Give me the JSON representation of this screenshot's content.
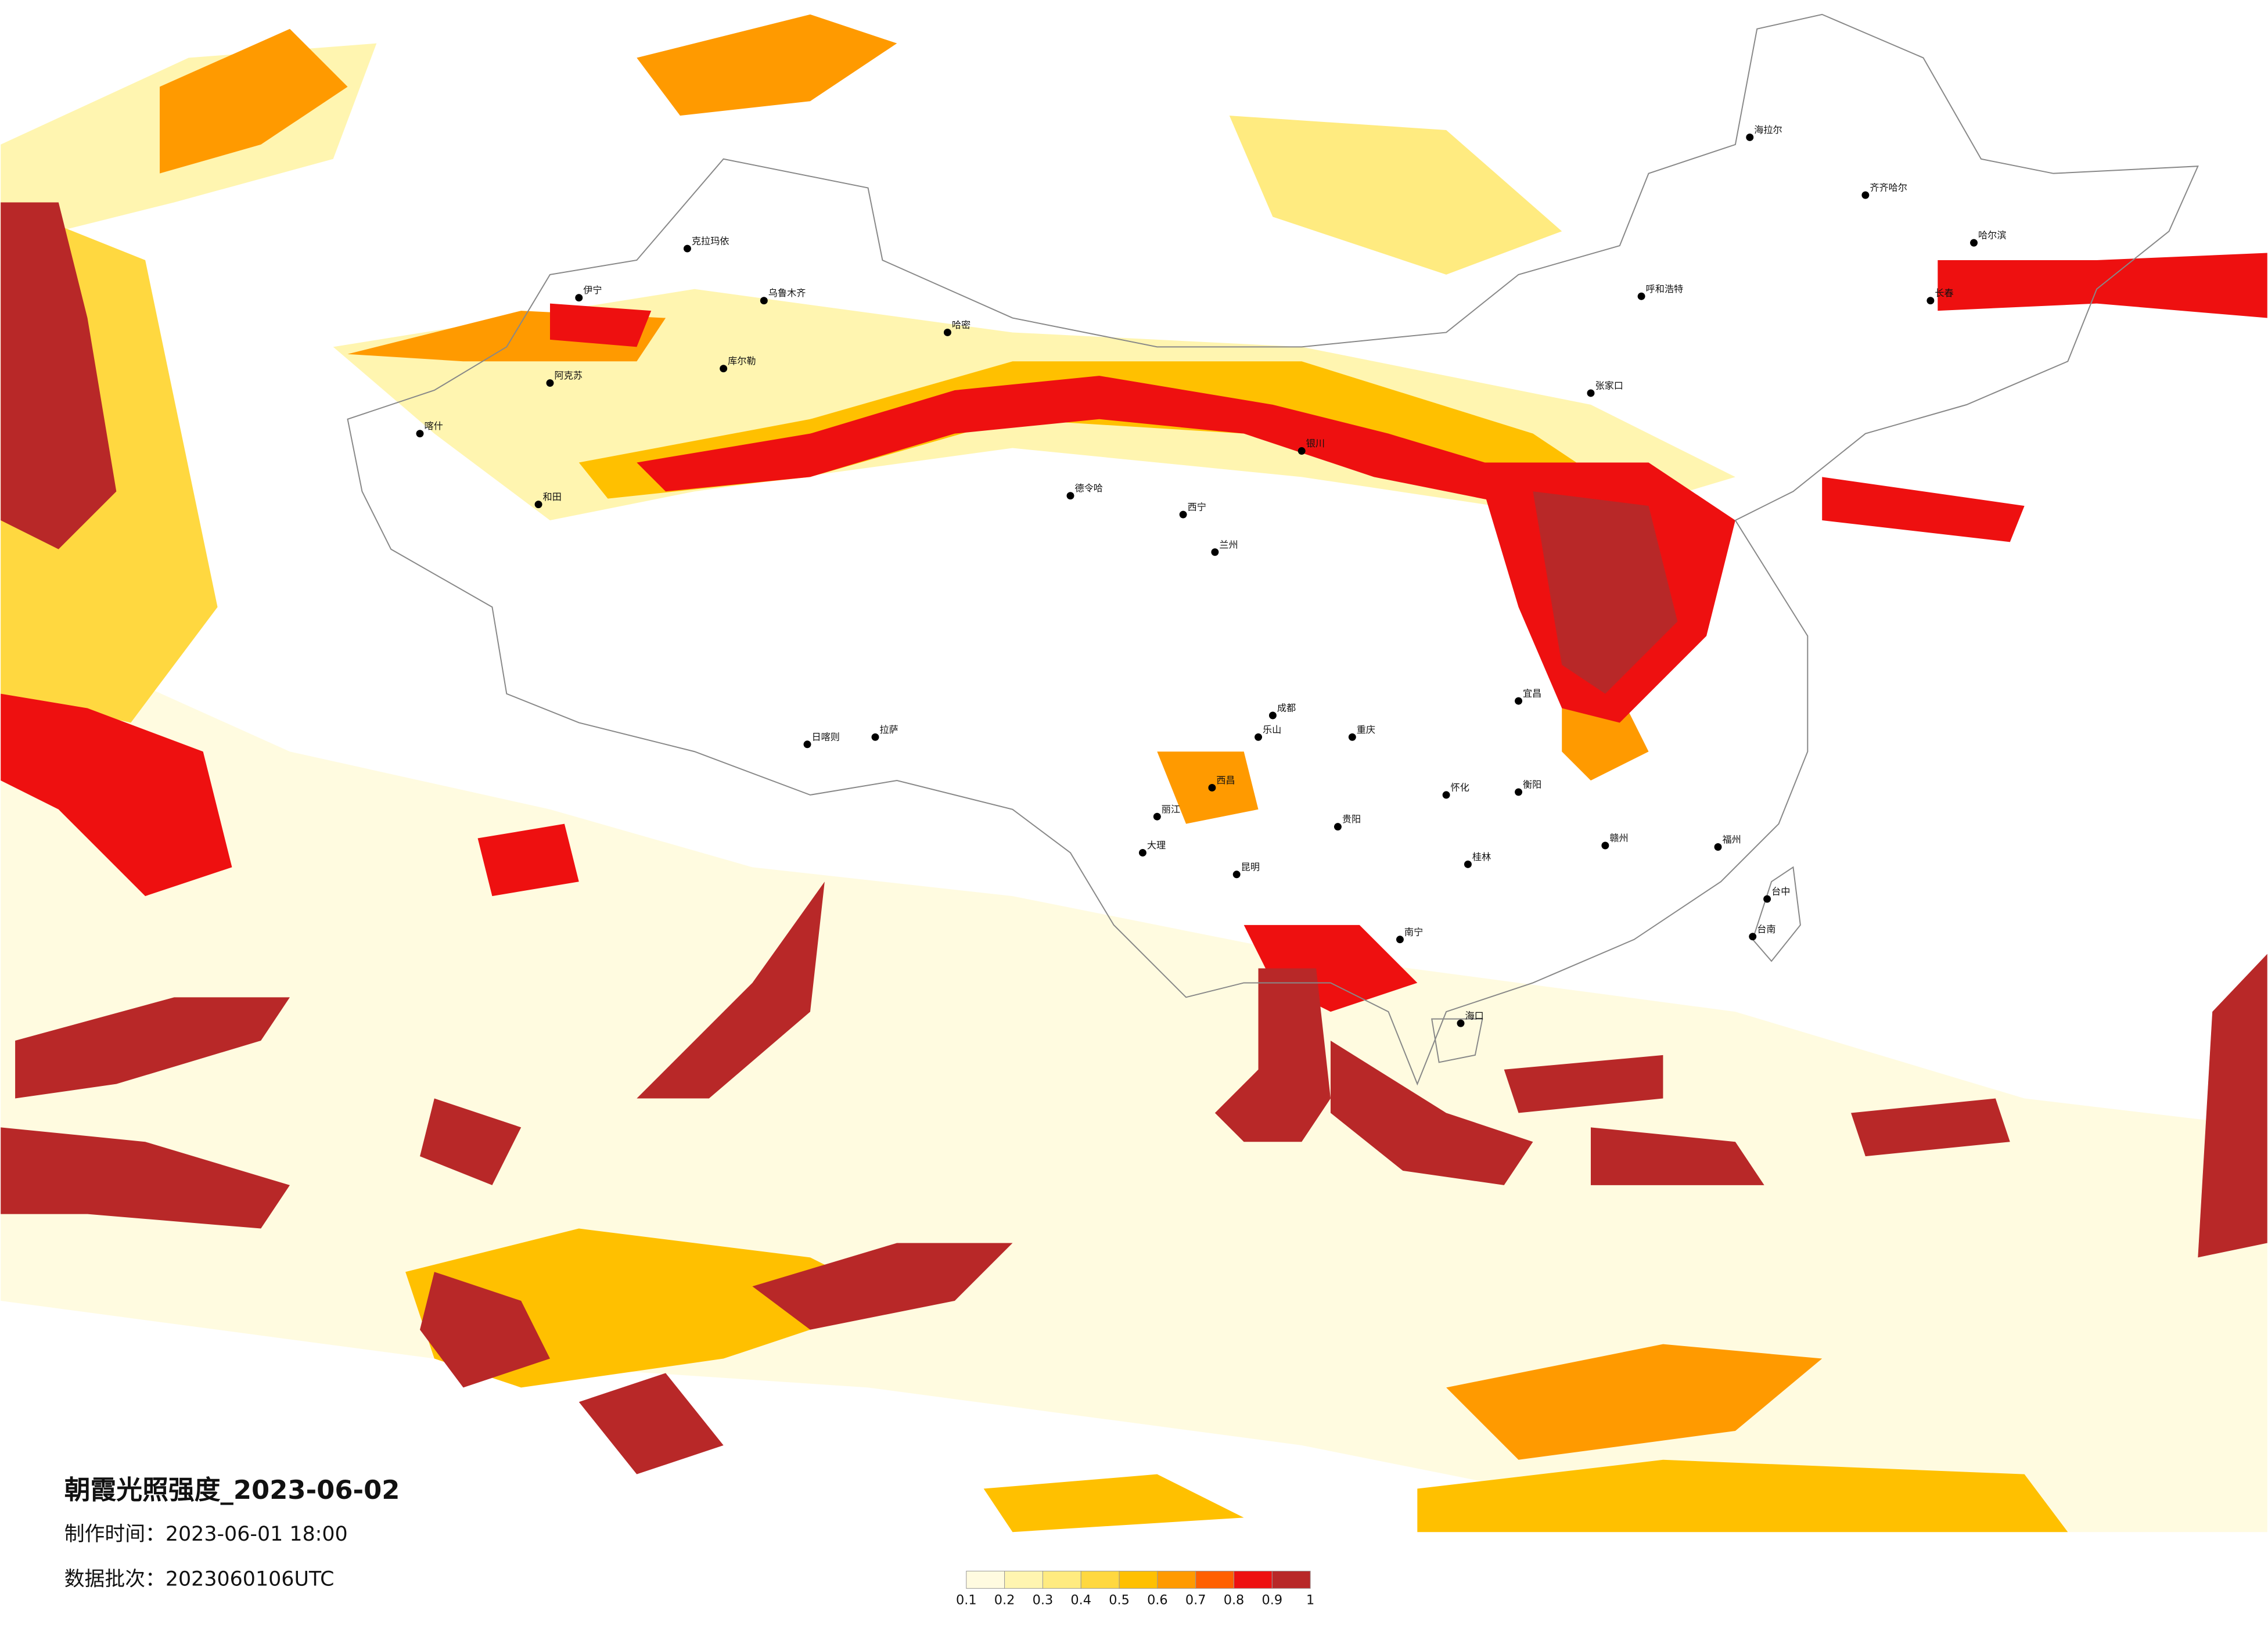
{
  "title": "朝霞光照强度_2023-06-02",
  "made_time": "制作时间：2023-06-01 18:00",
  "batch": "数据批次：2023060106UTC",
  "legend": {
    "labels": [
      "0.1",
      "0.2",
      "0.3",
      "0.4",
      "0.5",
      "0.6",
      "0.7",
      "0.8",
      "0.9",
      "1"
    ],
    "colors": [
      "#fffbe0",
      "#fff5b0",
      "#ffeb80",
      "#ffd840",
      "#ffc000",
      "#ff9a00",
      "#ff6000",
      "#ee1010",
      "#b82828"
    ]
  },
  "cities": [
    "克拉玛依",
    "乌鲁木齐",
    "伊宁",
    "阿克苏",
    "喀什",
    "和田",
    "哈密",
    "库尔勒",
    "拉萨",
    "日喀则",
    "德令哈",
    "西宁",
    "兰州",
    "银川",
    "呼和浩特",
    "张家口",
    "哈尔滨",
    "长春",
    "齐齐哈尔",
    "海拉尔",
    "成都",
    "重庆",
    "昆明",
    "贵阳",
    "南宁",
    "海口",
    "福州",
    "台中",
    "台南",
    "衡阳",
    "赣州",
    "桂林",
    "怀化",
    "宜昌",
    "乐山",
    "西昌",
    "丽江",
    "大理"
  ]
}
